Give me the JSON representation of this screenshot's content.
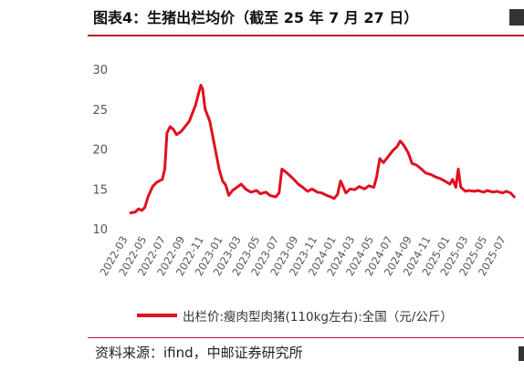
{
  "header": {
    "title": "图表4：生猪出栏均价（截至 25 年 7 月 27 日）"
  },
  "footer": {
    "source": "资料来源：ifind，中邮证券研究所"
  },
  "colors": {
    "line": "#e0101e",
    "accent_rule": "#c0162b",
    "tick_text": "#555555"
  },
  "chart_data": {
    "type": "line",
    "ylim": [
      10,
      30
    ],
    "yticks": [
      10,
      15,
      20,
      25,
      30
    ],
    "xticks": [
      "2022-03",
      "2022-05",
      "2022-07",
      "2022-09",
      "2022-11",
      "2023-01",
      "2023-03",
      "2023-05",
      "2023-07",
      "2023-09",
      "2023-11",
      "2024-01",
      "2024-03",
      "2024-05",
      "2024-07",
      "2024-09",
      "2024-11",
      "2025-01",
      "2025-03",
      "2025-05",
      "2025-07"
    ],
    "grid": false,
    "legend_position": "bottom",
    "series": [
      {
        "name": "出栏价:瘦肉型肉猪(110kg左右):全国（元/公斤）",
        "x": [
          "2022-03-10",
          "2022-03-25",
          "2022-04-05",
          "2022-04-15",
          "2022-04-25",
          "2022-05-05",
          "2022-05-20",
          "2022-06-01",
          "2022-06-10",
          "2022-06-20",
          "2022-06-28",
          "2022-07-05",
          "2022-07-15",
          "2022-07-25",
          "2022-08-05",
          "2022-08-20",
          "2022-09-01",
          "2022-09-15",
          "2022-09-25",
          "2022-10-05",
          "2022-10-15",
          "2022-10-22",
          "2022-10-28",
          "2022-11-05",
          "2022-11-20",
          "2022-12-05",
          "2022-12-20",
          "2022-12-31",
          "2023-01-10",
          "2023-01-20",
          "2023-02-01",
          "2023-02-15",
          "2023-03-01",
          "2023-03-15",
          "2023-04-01",
          "2023-04-20",
          "2023-05-01",
          "2023-05-20",
          "2023-06-01",
          "2023-06-20",
          "2023-07-01",
          "2023-07-10",
          "2023-07-20",
          "2023-08-01",
          "2023-08-15",
          "2023-09-01",
          "2023-09-15",
          "2023-10-01",
          "2023-10-15",
          "2023-11-01",
          "2023-11-15",
          "2023-12-01",
          "2023-12-15",
          "2023-12-25",
          "2024-01-05",
          "2024-01-15",
          "2024-02-01",
          "2024-02-15",
          "2024-03-01",
          "2024-03-15",
          "2024-04-01",
          "2024-04-15",
          "2024-05-01",
          "2024-05-10",
          "2024-05-20",
          "2024-06-01",
          "2024-06-15",
          "2024-07-01",
          "2024-07-15",
          "2024-07-25",
          "2024-08-05",
          "2024-08-20",
          "2024-09-01",
          "2024-09-15",
          "2024-10-01",
          "2024-10-15",
          "2024-11-01",
          "2024-11-15",
          "2024-12-01",
          "2024-12-15",
          "2025-01-01",
          "2025-01-10",
          "2025-01-20",
          "2025-01-28",
          "2025-02-05",
          "2025-02-20",
          "2025-03-01",
          "2025-03-20",
          "2025-04-01",
          "2025-04-20",
          "2025-05-01",
          "2025-05-20",
          "2025-06-01",
          "2025-06-20",
          "2025-07-01",
          "2025-07-15",
          "2025-07-27"
        ],
        "y": [
          12.0,
          12.1,
          12.5,
          12.3,
          12.7,
          14.0,
          15.3,
          15.8,
          16.0,
          16.2,
          17.5,
          22.0,
          22.8,
          22.5,
          21.8,
          22.2,
          22.8,
          23.5,
          24.5,
          25.5,
          27.0,
          28.0,
          27.5,
          25.0,
          23.5,
          20.5,
          17.5,
          16.0,
          15.5,
          14.2,
          14.8,
          15.2,
          15.6,
          15.0,
          14.6,
          14.8,
          14.4,
          14.6,
          14.2,
          14.0,
          14.5,
          17.5,
          17.2,
          16.8,
          16.3,
          15.6,
          15.2,
          14.7,
          15.0,
          14.6,
          14.5,
          14.2,
          14.0,
          13.8,
          14.3,
          16.0,
          14.5,
          15.0,
          14.9,
          15.3,
          15.0,
          15.4,
          15.2,
          16.5,
          18.8,
          18.3,
          19.0,
          19.8,
          20.3,
          21.0,
          20.5,
          19.5,
          18.2,
          18.0,
          17.5,
          17.0,
          16.8,
          16.5,
          16.3,
          16.0,
          15.6,
          16.2,
          15.2,
          17.5,
          15.2,
          14.7,
          14.8,
          14.7,
          14.8,
          14.6,
          14.8,
          14.6,
          14.7,
          14.5,
          14.7,
          14.5,
          14.0
        ]
      }
    ]
  }
}
